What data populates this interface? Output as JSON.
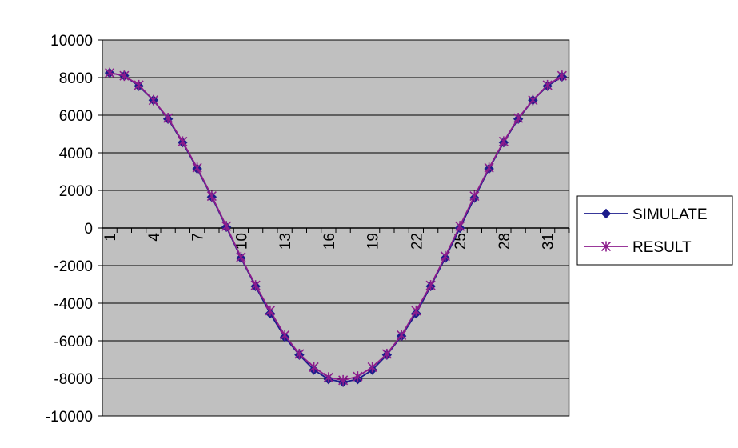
{
  "chart_data": {
    "type": "line",
    "title": "",
    "xlabel": "",
    "ylabel": "",
    "ylim": [
      -10000,
      10000
    ],
    "y_ticks": [
      "10000",
      "8000",
      "6000",
      "4000",
      "2000",
      "0",
      "-2000",
      "-4000",
      "-6000",
      "-8000",
      "-10000"
    ],
    "x_tick_labels": [
      "1",
      "4",
      "7",
      "10",
      "13",
      "16",
      "19",
      "22",
      "25",
      "28",
      "31"
    ],
    "x": [
      1,
      2,
      3,
      4,
      5,
      6,
      7,
      8,
      9,
      10,
      11,
      12,
      13,
      14,
      15,
      16,
      17,
      18,
      19,
      20,
      21,
      22,
      23,
      24,
      25,
      26,
      27,
      28,
      29,
      30,
      31,
      32
    ],
    "grid": "horizontal",
    "legend_position": "right",
    "series": [
      {
        "name": "SIMULATE",
        "color": "#1c1c8c",
        "marker": "diamond",
        "values": [
          8250,
          8100,
          7550,
          6800,
          5800,
          4550,
          3150,
          1650,
          50,
          -1600,
          -3100,
          -4550,
          -5800,
          -6750,
          -7550,
          -8050,
          -8200,
          -8050,
          -7550,
          -6750,
          -5750,
          -4550,
          -3100,
          -1600,
          0,
          1600,
          3150,
          4550,
          5800,
          6800,
          7550,
          8050
        ]
      },
      {
        "name": "RESULT",
        "color": "#8c1c8c",
        "marker": "star",
        "values": [
          8250,
          8100,
          7600,
          6800,
          5850,
          4600,
          3200,
          1700,
          100,
          -1550,
          -3050,
          -4400,
          -5700,
          -6700,
          -7400,
          -7950,
          -8100,
          -7900,
          -7400,
          -6700,
          -5700,
          -4400,
          -3050,
          -1500,
          100,
          1700,
          3200,
          4600,
          5850,
          6800,
          7600,
          8100
        ]
      }
    ]
  }
}
